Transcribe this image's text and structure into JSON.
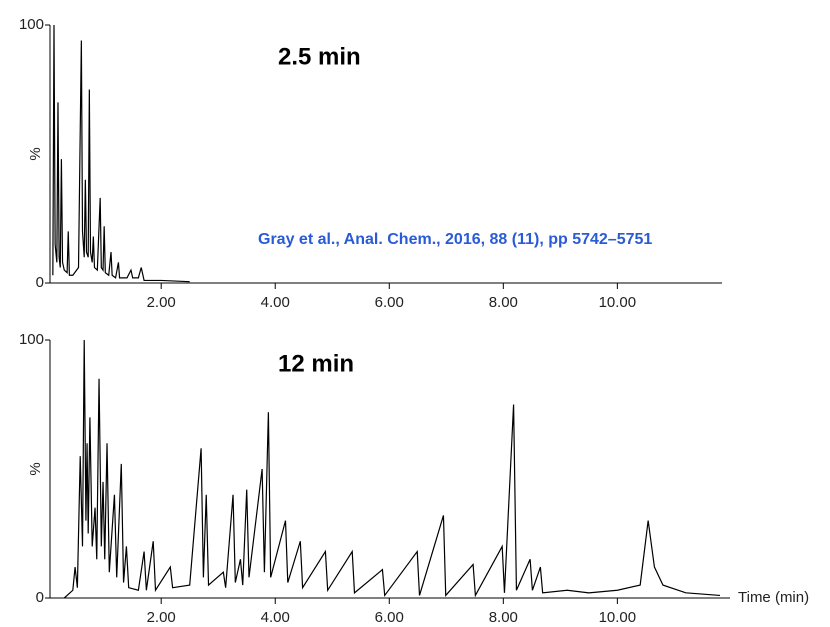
{
  "citation": "Gray et al., Anal. Chem., 2016, 88 (11), pp 5742–5751",
  "chart_data": [
    {
      "type": "line",
      "annotation": "2.5 min",
      "ylabel": "%",
      "color": "#000000",
      "xlim": [
        0.05,
        11.8
      ],
      "ylim": [
        0,
        100
      ],
      "xticks": [
        {
          "value": 2,
          "label": "2.00"
        },
        {
          "value": 4,
          "label": "4.00"
        },
        {
          "value": 6,
          "label": "6.00"
        },
        {
          "value": 8,
          "label": "8.00"
        },
        {
          "value": 10,
          "label": "10.00"
        }
      ],
      "yticks": [
        0,
        100
      ],
      "x": [
        0.1,
        0.12,
        0.14,
        0.17,
        0.19,
        0.21,
        0.23,
        0.25,
        0.27,
        0.3,
        0.35,
        0.37,
        0.39,
        0.45,
        0.55,
        0.6,
        0.62,
        0.65,
        0.67,
        0.69,
        0.72,
        0.74,
        0.76,
        0.79,
        0.81,
        0.83,
        0.88,
        0.93,
        0.95,
        0.98,
        1.0,
        1.02,
        1.08,
        1.12,
        1.14,
        1.2,
        1.25,
        1.27,
        1.4,
        1.47,
        1.5,
        1.6,
        1.65,
        1.7,
        2.0,
        2.5
      ],
      "values": [
        3,
        100,
        15,
        8,
        70,
        10,
        6,
        48,
        8,
        5,
        4,
        20,
        3,
        3,
        6,
        94,
        20,
        10,
        40,
        12,
        10,
        75,
        12,
        8,
        18,
        6,
        5,
        33,
        6,
        5,
        22,
        4,
        3,
        12,
        3,
        2,
        8,
        2,
        2,
        5,
        2,
        2,
        6,
        1,
        1,
        0.5
      ]
    },
    {
      "type": "line",
      "annotation": "12 min",
      "ylabel": "%",
      "xlabel": "Time (min)",
      "color": "#000000",
      "xlim": [
        0.05,
        11.8
      ],
      "ylim": [
        0,
        100
      ],
      "xticks": [
        {
          "value": 2,
          "label": "2.00"
        },
        {
          "value": 4,
          "label": "4.00"
        },
        {
          "value": 6,
          "label": "6.00"
        },
        {
          "value": 8,
          "label": "8.00"
        },
        {
          "value": 10,
          "label": "10.00"
        }
      ],
      "yticks": [
        0,
        100
      ],
      "x": [
        0.3,
        0.45,
        0.49,
        0.53,
        0.58,
        0.62,
        0.65,
        0.68,
        0.7,
        0.72,
        0.75,
        0.79,
        0.84,
        0.87,
        0.91,
        0.95,
        0.98,
        1.01,
        1.05,
        1.09,
        1.18,
        1.22,
        1.3,
        1.34,
        1.39,
        1.43,
        1.6,
        1.7,
        1.74,
        1.86,
        1.9,
        2.16,
        2.2,
        2.5,
        2.7,
        2.74,
        2.79,
        2.83,
        3.09,
        3.13,
        3.26,
        3.3,
        3.39,
        3.43,
        3.5,
        3.54,
        3.77,
        3.81,
        3.88,
        3.92,
        4.18,
        4.22,
        4.44,
        4.48,
        4.88,
        4.92,
        5.35,
        5.39,
        5.88,
        5.92,
        6.49,
        6.53,
        6.95,
        6.99,
        7.47,
        7.51,
        7.98,
        8.02,
        8.18,
        8.23,
        8.47,
        8.51,
        8.65,
        8.69,
        9.12,
        9.5,
        10.0,
        10.4,
        10.54,
        10.65,
        10.8,
        11.2,
        11.8
      ],
      "values": [
        0,
        3,
        12,
        4,
        55,
        20,
        100,
        30,
        60,
        25,
        70,
        20,
        35,
        15,
        85,
        20,
        45,
        15,
        60,
        10,
        40,
        8,
        52,
        6,
        20,
        4,
        3,
        18,
        3,
        22,
        3,
        12,
        4,
        5,
        58,
        8,
        40,
        5,
        10,
        4,
        40,
        6,
        15,
        5,
        42,
        8,
        50,
        10,
        72,
        8,
        30,
        6,
        22,
        4,
        18,
        3,
        18,
        2,
        11,
        1,
        18,
        1,
        32,
        1,
        13,
        1,
        20,
        2,
        75,
        3,
        15,
        3,
        12,
        2,
        3,
        2,
        3,
        5,
        30,
        12,
        5,
        2,
        1
      ]
    }
  ]
}
